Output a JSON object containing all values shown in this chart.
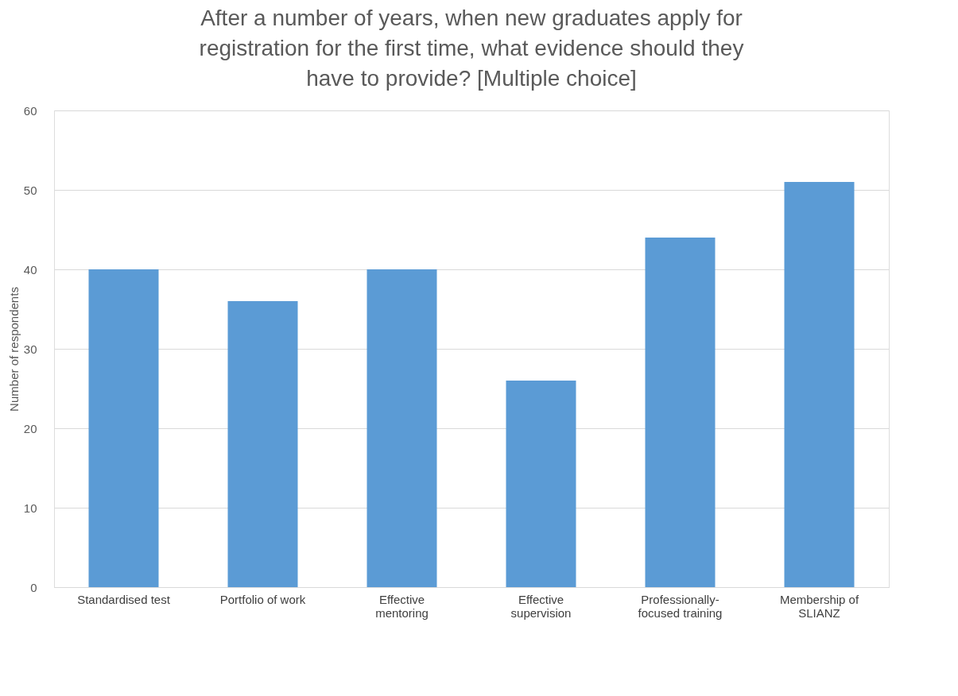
{
  "chart_data": {
    "type": "bar",
    "title": "After a number of years, when new graduates apply for registration for the first time, what evidence should they have to provide? [Multiple choice]",
    "ylabel": "Number of respondents",
    "categories": [
      "Standardised test",
      "Portfolio of work",
      "Effective mentoring",
      "Effective supervision",
      "Professionally-focused training",
      "Membership of SLIANZ"
    ],
    "values": [
      40,
      36,
      40,
      26,
      44,
      51
    ],
    "color": "#5b9bd5",
    "ylim": [
      0,
      60
    ],
    "yticks": [
      0,
      10,
      20,
      30,
      40,
      50,
      60
    ],
    "grid": "y"
  }
}
